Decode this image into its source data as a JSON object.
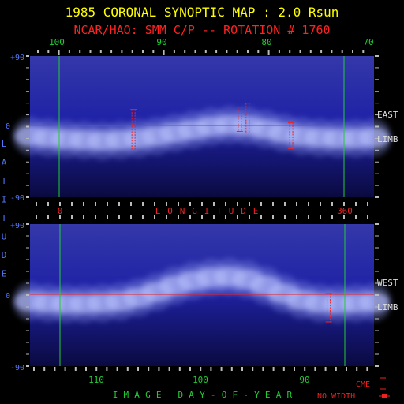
{
  "title": "1985 CORONAL SYNOPTIC MAP : 2.0 Rsun",
  "subtitle": "NCAR/HAO: SMM C/P -- ROTATION # 1760",
  "colors": {
    "title": "#ffff00",
    "subtitle": "#ff2222",
    "label_blue": "#5577ff",
    "green": "#22cc33",
    "red": "#ee2222",
    "tick": "#bbbbbb",
    "plot_bg": "#10108a",
    "band": "#c8d0ff"
  },
  "axis_labels": {
    "latitude": "LATITUDE",
    "longitude": "LONGITUDE",
    "day_of_year": "IMAGE DAY-OF-YEAR"
  },
  "panel_labels": {
    "east": "EAST",
    "west": "WEST",
    "limb": "LIMB"
  },
  "legend": {
    "cme": "CME",
    "no_width": "NO WIDTH"
  },
  "chart_data": [
    {
      "type": "heatmap",
      "name": "east-limb",
      "top_axis_ticks": [
        "100",
        "90",
        "80",
        "70"
      ],
      "bottom_axis_ticks": [
        "0",
        "360"
      ],
      "ytick_labels": [
        "+90",
        "0",
        "-90"
      ],
      "ylim": [
        -90,
        90
      ],
      "band_center_lat": [
        -12,
        -14,
        -16,
        -17,
        -18,
        -17,
        -15,
        -12,
        -8,
        -4,
        0,
        2,
        1,
        -3,
        -8,
        -12,
        -14,
        -15,
        -15,
        -14
      ],
      "cme_markers": [
        {
          "day": 91.0,
          "lat_top": 22,
          "lat_bottom": -32
        },
        {
          "day": 81.5,
          "lat_top": 25,
          "lat_bottom": -6
        },
        {
          "day": 80.8,
          "lat_top": 30,
          "lat_bottom": -8
        },
        {
          "day": 76.9,
          "lat_top": 5,
          "lat_bottom": -28
        }
      ]
    },
    {
      "type": "heatmap",
      "name": "west-limb",
      "bottom_axis_ticks": [
        "110",
        "100",
        "90"
      ],
      "ytick_labels": [
        "+90",
        "0",
        "-90"
      ],
      "ylim": [
        -90,
        90
      ],
      "band_center_lat": [
        -8,
        -10,
        -11,
        -11,
        -10,
        -8,
        -3,
        4,
        12,
        18,
        22,
        23,
        20,
        12,
        2,
        -6,
        -10,
        -11,
        -10,
        -9
      ],
      "cme_markers": [
        {
          "day": 87.0,
          "lat_top": 2,
          "lat_bottom": -34
        }
      ]
    }
  ]
}
